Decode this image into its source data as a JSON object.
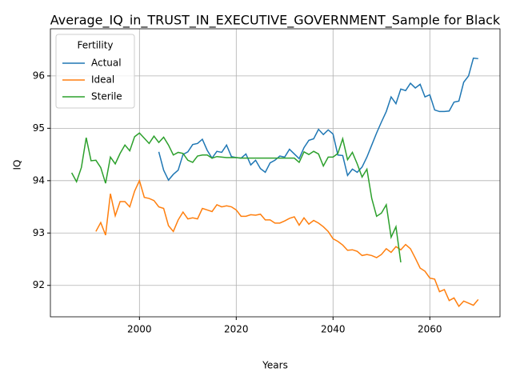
{
  "chart_data": {
    "type": "line",
    "title": "Average_IQ_in_TRUST_IN_EXECUTIVE_GOVERNMENT_Sample for Black",
    "xlabel": "Years",
    "ylabel": "IQ",
    "legend_title": "Fertility",
    "legend": "upper left",
    "grid": true,
    "xlim": [
      1981.6,
      2074.5
    ],
    "ylim": [
      91.4,
      96.9
    ],
    "xticks": [
      2000,
      2020,
      2040,
      2060
    ],
    "yticks": [
      92,
      93,
      94,
      95,
      96
    ],
    "x": [
      1986,
      1987,
      1988,
      1989,
      1990,
      1991,
      1992,
      1993,
      1994,
      1995,
      1996,
      1997,
      1998,
      1999,
      2000,
      2001,
      2002,
      2003,
      2004,
      2005,
      2006,
      2007,
      2008,
      2009,
      2010,
      2011,
      2012,
      2013,
      2014,
      2015,
      2016,
      2017,
      2018,
      2019,
      2020,
      2021,
      2022,
      2023,
      2024,
      2025,
      2026,
      2027,
      2028,
      2029,
      2030,
      2031,
      2032,
      2033,
      2034,
      2035,
      2036,
      2037,
      2038,
      2039,
      2040,
      2041,
      2042,
      2043,
      2044,
      2045,
      2046,
      2047,
      2048,
      2049,
      2050,
      2051,
      2052,
      2053,
      2054,
      2055,
      2056,
      2057,
      2058,
      2059,
      2060,
      2061,
      2062,
      2063,
      2064,
      2065,
      2066,
      2067,
      2068,
      2069,
      2070
    ],
    "series": [
      {
        "name": "Actual",
        "color": "#1f77b4",
        "values": [
          null,
          null,
          null,
          null,
          null,
          null,
          null,
          null,
          null,
          null,
          null,
          null,
          null,
          null,
          null,
          null,
          null,
          null,
          94.55,
          94.2,
          94.01,
          94.12,
          94.2,
          94.5,
          94.55,
          94.69,
          94.71,
          94.79,
          94.58,
          94.43,
          94.56,
          94.54,
          94.68,
          94.46,
          94.44,
          94.43,
          94.51,
          94.3,
          94.39,
          94.23,
          94.16,
          94.34,
          94.39,
          94.47,
          94.45,
          94.6,
          94.51,
          94.42,
          94.63,
          94.77,
          94.8,
          94.98,
          94.88,
          94.97,
          94.89,
          94.49,
          94.48,
          94.1,
          94.22,
          94.16,
          94.26,
          94.45,
          94.68,
          94.91,
          95.12,
          95.32,
          95.6,
          95.47,
          95.75,
          95.72,
          95.86,
          95.77,
          95.84,
          95.6,
          95.64,
          95.35,
          95.32,
          95.32,
          95.33,
          95.5,
          95.52,
          95.88,
          96.0,
          96.34,
          96.33
        ]
      },
      {
        "name": "Ideal",
        "color": "#ff7f0e",
        "values": [
          null,
          null,
          null,
          null,
          null,
          93.03,
          93.2,
          92.96,
          93.75,
          93.33,
          93.6,
          93.6,
          93.5,
          93.8,
          94.0,
          93.68,
          93.66,
          93.62,
          93.5,
          93.47,
          93.14,
          93.03,
          93.25,
          93.4,
          93.27,
          93.29,
          93.27,
          93.47,
          93.44,
          93.41,
          93.54,
          93.5,
          93.52,
          93.5,
          93.44,
          93.32,
          93.32,
          93.35,
          93.34,
          93.36,
          93.25,
          93.25,
          93.19,
          93.19,
          93.23,
          93.28,
          93.31,
          93.15,
          93.29,
          93.17,
          93.24,
          93.19,
          93.12,
          93.03,
          92.89,
          92.84,
          92.77,
          92.67,
          92.68,
          92.65,
          92.57,
          92.59,
          92.57,
          92.53,
          92.59,
          92.7,
          92.63,
          92.74,
          92.68,
          92.78,
          92.7,
          92.52,
          92.33,
          92.27,
          92.14,
          92.12,
          91.88,
          91.92,
          91.71,
          91.76,
          91.6,
          91.7,
          91.66,
          91.62,
          91.73
        ]
      },
      {
        "name": "Sterile",
        "color": "#2ca02c",
        "values": [
          94.15,
          93.98,
          94.25,
          94.82,
          94.38,
          94.39,
          94.25,
          93.95,
          94.45,
          94.32,
          94.52,
          94.68,
          94.57,
          94.84,
          94.91,
          94.81,
          94.71,
          94.85,
          94.73,
          94.83,
          94.68,
          94.49,
          94.54,
          94.52,
          94.39,
          94.35,
          94.47,
          94.49,
          94.49,
          94.43,
          94.46,
          94.45,
          94.44,
          94.44,
          94.44,
          94.43,
          94.43,
          94.43,
          94.43,
          94.43,
          94.43,
          94.43,
          94.43,
          94.43,
          94.43,
          94.43,
          94.43,
          94.35,
          94.55,
          94.5,
          94.56,
          94.51,
          94.28,
          94.45,
          94.45,
          94.52,
          94.8,
          94.4,
          94.54,
          94.32,
          94.07,
          94.22,
          93.66,
          93.32,
          93.38,
          93.54,
          92.92,
          93.12,
          92.44,
          null,
          null,
          null,
          null,
          null,
          null,
          null,
          null,
          null,
          null,
          null,
          null,
          null,
          null,
          null,
          null
        ]
      }
    ]
  }
}
